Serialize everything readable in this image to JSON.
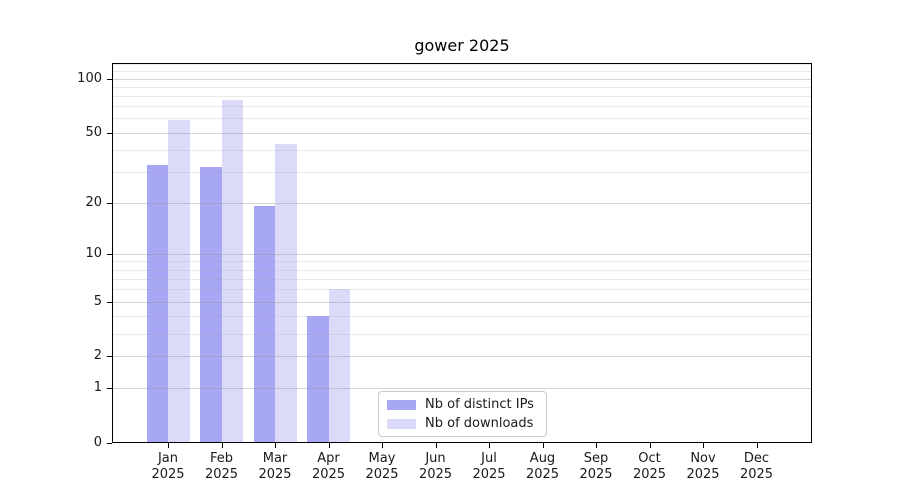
{
  "chart_data": {
    "type": "bar",
    "title": "gower 2025",
    "y_scale": "log1p",
    "categories": [
      "Jan",
      "Feb",
      "Mar",
      "Apr",
      "May",
      "Jun",
      "Jul",
      "Aug",
      "Sep",
      "Oct",
      "Nov",
      "Dec"
    ],
    "x_tick_line2": "2025",
    "xlabel": "",
    "ylabel": "",
    "ylim": [
      0,
      122
    ],
    "yticks": [
      0,
      1,
      2,
      5,
      10,
      20,
      50,
      100
    ],
    "minor_yticks": [
      3,
      4,
      6,
      7,
      8,
      9,
      30,
      40,
      60,
      70,
      80,
      90,
      110,
      120
    ],
    "grid": "on",
    "series": [
      {
        "name": "Nb of distinct IPs",
        "color": "#a7a7f3",
        "values": [
          33,
          32,
          19,
          4,
          null,
          null,
          null,
          null,
          null,
          null,
          null,
          null
        ]
      },
      {
        "name": "Nb of downloads",
        "color": "#dbdbf9",
        "values": [
          59,
          76,
          43,
          6,
          null,
          null,
          null,
          null,
          null,
          null,
          null,
          null
        ]
      }
    ],
    "legend": {
      "position": "lower center",
      "items": [
        "Nb of distinct IPs",
        "Nb of downloads"
      ]
    },
    "colors": {
      "axis": "#000000",
      "major_grid": "#d5d5d5",
      "minor_grid": "#eaeaea",
      "background": "#ffffff"
    }
  }
}
